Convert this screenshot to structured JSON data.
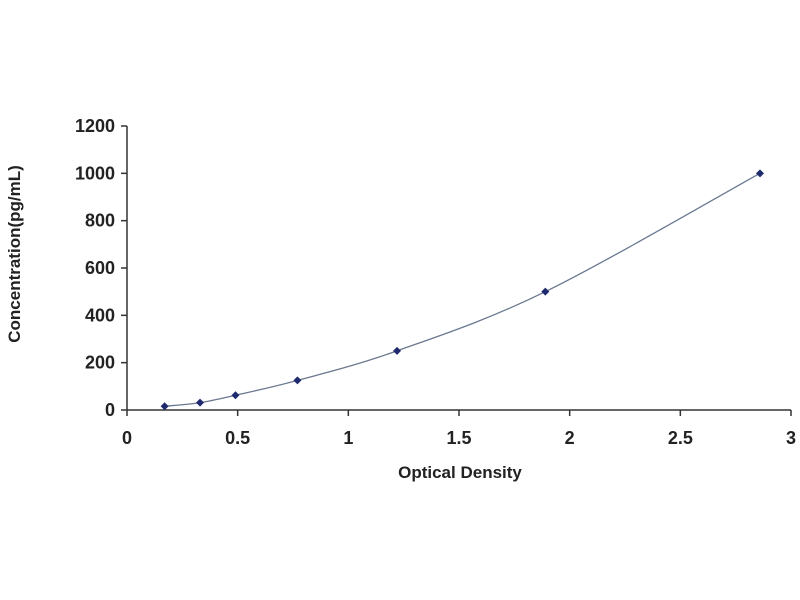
{
  "colors": {
    "axis": "#333333",
    "curve": "#6a7890",
    "marker": "#1f2a6e",
    "text": "#222222"
  },
  "chart_data": {
    "type": "scatter",
    "title": "",
    "xlabel": "Optical Density",
    "ylabel": "Concentration(pg/mL)",
    "xlim": [
      0,
      3
    ],
    "ylim": [
      0,
      1200
    ],
    "xticks": [
      0,
      0.5,
      1,
      1.5,
      2,
      2.5,
      3
    ],
    "xtick_labels": [
      "0",
      "0.5",
      "1",
      "1.5",
      "2",
      "2.5",
      "3"
    ],
    "yticks": [
      0,
      200,
      400,
      600,
      800,
      1000,
      1200
    ],
    "ytick_labels": [
      "0",
      "200",
      "400",
      "600",
      "800",
      "1000",
      "1200"
    ],
    "grid": false,
    "legend": "none",
    "trendline": "smooth curve through points",
    "series": [
      {
        "x": [
          0.17,
          0.33,
          0.49,
          0.77,
          1.22,
          1.89,
          2.86
        ],
        "y": [
          15.6,
          31.2,
          62.5,
          125,
          250,
          500,
          1000
        ]
      }
    ]
  }
}
